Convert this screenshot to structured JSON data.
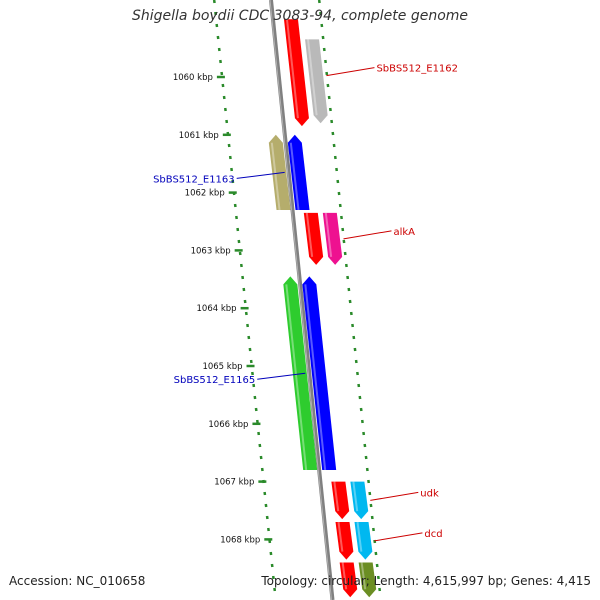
{
  "title": "Shigella boydii CDC 3083-94, complete genome",
  "accession_text": "Accession: NC_010658",
  "topology_text": "Topology: circular; Length: 4,615,997 bp; Genes: 4,415",
  "scale_unit": "kbp",
  "scale_ticks": [
    {
      "label": "1060 kbp",
      "pos": 1060
    },
    {
      "label": "1061 kbp",
      "pos": 1061
    },
    {
      "label": "1062 kbp",
      "pos": 1062
    },
    {
      "label": "1063 kbp",
      "pos": 1063
    },
    {
      "label": "1064 kbp",
      "pos": 1064
    },
    {
      "label": "1065 kbp",
      "pos": 1065
    },
    {
      "label": "1066 kbp",
      "pos": 1066
    },
    {
      "label": "1067 kbp",
      "pos": 1067
    },
    {
      "label": "1068 kbp",
      "pos": 1068
    }
  ],
  "colors": {
    "backbone": "#808080",
    "scale_dash": "#2a8a2a",
    "label_forward": "#cc0000",
    "label_reverse": "#0000bb"
  },
  "features": [
    {
      "name": "SbBS512_E1162",
      "strand": "+",
      "start": 1059.0,
      "end": 1060.85,
      "track": "plus-1",
      "color": "#ff0000",
      "label": "SbBS512_E1162",
      "show_label": true
    },
    {
      "name": "",
      "strand": "+",
      "start": 1059.35,
      "end": 1060.8,
      "track": "plus-2",
      "color": "#b9b9b9",
      "label": "",
      "show_label": false
    },
    {
      "name": "SbBS512_E1163",
      "strand": "-",
      "start": 1061.0,
      "end": 1062.3,
      "track": "minus-2",
      "color": "#b5ad6c",
      "label": "",
      "show_label": false
    },
    {
      "name": "SbBS512_E1163",
      "strand": "-",
      "start": 1061.0,
      "end": 1062.3,
      "track": "minus-1",
      "color": "#0000ff",
      "label": "SbBS512_E1163",
      "show_label": true
    },
    {
      "name": "alkA",
      "strand": "+",
      "start": 1062.35,
      "end": 1063.25,
      "track": "plus-1",
      "color": "#ff0000",
      "label": "alkA",
      "show_label": true
    },
    {
      "name": "",
      "strand": "+",
      "start": 1062.35,
      "end": 1063.25,
      "track": "plus-2",
      "color": "#ee1190",
      "label": "",
      "show_label": false
    },
    {
      "name": "SbBS512_E1165",
      "strand": "-",
      "start": 1063.45,
      "end": 1066.8,
      "track": "minus-2",
      "color": "#2ecc2e",
      "label": "",
      "show_label": false
    },
    {
      "name": "SbBS512_E1165",
      "strand": "-",
      "start": 1063.45,
      "end": 1066.8,
      "track": "minus-1",
      "color": "#0000ff",
      "label": "SbBS512_E1165",
      "show_label": true
    },
    {
      "name": "udk",
      "strand": "+",
      "start": 1067.0,
      "end": 1067.65,
      "track": "plus-1",
      "color": "#ff0000",
      "label": "udk",
      "show_label": true
    },
    {
      "name": "",
      "strand": "+",
      "start": 1067.0,
      "end": 1067.65,
      "track": "plus-2",
      "color": "#00b8f0",
      "label": "",
      "show_label": false
    },
    {
      "name": "dcd",
      "strand": "+",
      "start": 1067.7,
      "end": 1068.35,
      "track": "plus-1",
      "color": "#ff0000",
      "label": "dcd",
      "show_label": true
    },
    {
      "name": "",
      "strand": "+",
      "start": 1067.7,
      "end": 1068.35,
      "track": "plus-2",
      "color": "#00b8f0",
      "label": "",
      "show_label": false
    },
    {
      "name": "",
      "strand": "+",
      "start": 1068.4,
      "end": 1069.0,
      "track": "plus-1",
      "color": "#ff0000",
      "label": "",
      "show_label": false
    },
    {
      "name": "",
      "strand": "+",
      "start": 1068.4,
      "end": 1069.0,
      "track": "plus-2",
      "color": "#6b8e23",
      "label": "",
      "show_label": false
    }
  ]
}
